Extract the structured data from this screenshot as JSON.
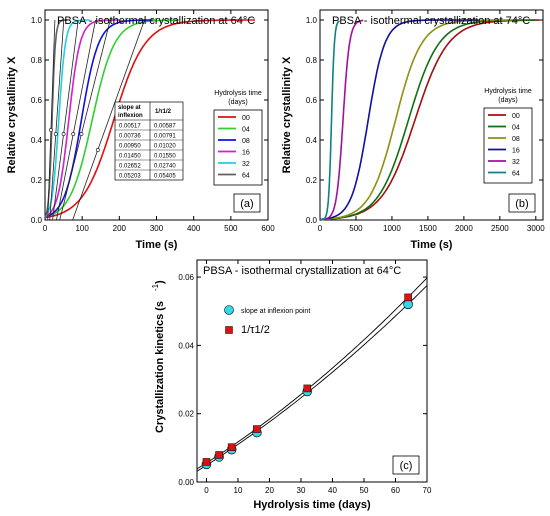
{
  "chart_data": [
    {
      "panel": "a",
      "type": "line",
      "title": "PBSA - isothermal crystallization at 64°C",
      "xlabel": "Time (s)",
      "ylabel": "Relative crystallinity X",
      "xlim": [
        0,
        600
      ],
      "ylim": [
        0,
        1.05
      ],
      "xticks": [
        0,
        100,
        200,
        300,
        400,
        500,
        600
      ],
      "yticks": [
        0.0,
        0.2,
        0.4,
        0.6,
        0.8,
        1.0
      ],
      "legend_title": "Hydrolysis time (days)",
      "legend_placement": "center-right",
      "panel_label": "(a)",
      "series": [
        {
          "name": "00",
          "color": "#e01010",
          "t_half": 185,
          "width": 42,
          "t_end": 565
        },
        {
          "name": "04",
          "color": "#30d030",
          "t_half": 127,
          "width": 30,
          "t_end": 360
        },
        {
          "name": "08",
          "color": "#1010e0",
          "t_half": 98,
          "width": 23,
          "t_end": 290
        },
        {
          "name": "16",
          "color": "#d020d0",
          "t_half": 64,
          "width": 15,
          "t_end": 200
        },
        {
          "name": "32",
          "color": "#20d0e0",
          "t_half": 37,
          "width": 9,
          "t_end": 120
        },
        {
          "name": "64",
          "color": "#606060",
          "t_half": 19,
          "width": 4.5,
          "t_end": 60
        }
      ],
      "tangent_lines": [
        {
          "t_inf": 142,
          "y_inf": 0.35,
          "slope": 0.00517
        },
        {
          "t_inf": 98,
          "y_inf": 0.43,
          "slope": 0.00736
        },
        {
          "t_inf": 76,
          "y_inf": 0.43,
          "slope": 0.0095
        },
        {
          "t_inf": 50,
          "y_inf": 0.43,
          "slope": 0.0145
        },
        {
          "t_inf": 29,
          "y_inf": 0.43,
          "slope": 0.02652
        },
        {
          "t_inf": 16,
          "y_inf": 0.45,
          "slope": 0.05203
        }
      ],
      "inset_table": {
        "col1_header": "slope at inflexion",
        "col2_header": "1/τ1/2",
        "rows": [
          [
            "0.00517",
            "0.00587"
          ],
          [
            "0.00736",
            "0.00791"
          ],
          [
            "0.00950",
            "0.01020"
          ],
          [
            "0.01450",
            "0.01550"
          ],
          [
            "0.02652",
            "0.02740"
          ],
          [
            "0.05203",
            "0.05405"
          ]
        ]
      }
    },
    {
      "panel": "b",
      "type": "line",
      "title": "PBSA - isothermal crystallization at 74°C",
      "xlabel": "Time (s)",
      "ylabel": "Relative crystallinity X",
      "xlim": [
        0,
        3100
      ],
      "ylim": [
        0,
        1.05
      ],
      "xticks": [
        0,
        500,
        1000,
        1500,
        2000,
        2500,
        3000
      ],
      "yticks": [
        0.0,
        0.2,
        0.4,
        0.6,
        0.8,
        1.0
      ],
      "legend_title": "Hydrolysis time (days)",
      "legend_placement": "center-right",
      "panel_label": "(b)",
      "series": [
        {
          "name": "00",
          "color": "#a01010",
          "t_half": 1320,
          "width": 230,
          "t_end": 3050
        },
        {
          "name": "04",
          "color": "#107010",
          "t_half": 1230,
          "width": 210,
          "t_end": 3000
        },
        {
          "name": "08",
          "color": "#909010",
          "t_half": 1050,
          "width": 180,
          "t_end": 2700
        },
        {
          "name": "16",
          "color": "#1010a0",
          "t_half": 670,
          "width": 115,
          "t_end": 2200
        },
        {
          "name": "32",
          "color": "#a010a0",
          "t_half": 320,
          "width": 45,
          "t_end": 600
        },
        {
          "name": "64",
          "color": "#108080",
          "t_half": 160,
          "width": 20,
          "t_end": 270
        }
      ]
    },
    {
      "panel": "c",
      "type": "scatter",
      "title": "PBSA - isothermal crystallization at 64°C",
      "xlabel": "Hydrolysis time (days)",
      "ylabel": "Crystallization kinetics (s-1)",
      "xlim": [
        -3,
        70
      ],
      "ylim": [
        0,
        0.065
      ],
      "xticks": [
        0,
        10,
        20,
        30,
        40,
        50,
        60,
        70
      ],
      "yticks": [
        0.0,
        0.02,
        0.04,
        0.06
      ],
      "legend_placement": "top-left",
      "panel_label": "(c)",
      "series": [
        {
          "name": "slope at inflexion point",
          "marker": "circle",
          "color": "#30d8e8",
          "x": [
            0,
            4,
            8,
            16,
            32,
            64
          ],
          "y": [
            0.00517,
            0.00736,
            0.0095,
            0.0145,
            0.02652,
            0.05203
          ]
        },
        {
          "name": "1/τ1/2",
          "marker": "square",
          "color": "#e01010",
          "x": [
            0,
            4,
            8,
            16,
            32,
            64
          ],
          "y": [
            0.00587,
            0.00791,
            0.0102,
            0.0155,
            0.0274,
            0.05405
          ]
        }
      ]
    }
  ]
}
